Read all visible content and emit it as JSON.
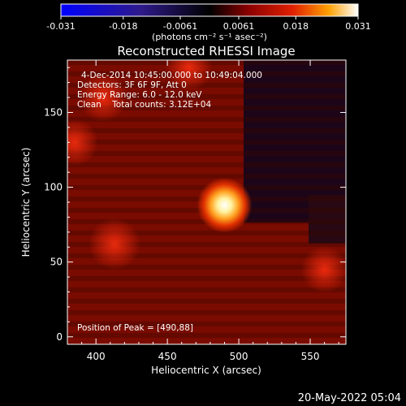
{
  "chart_data": {
    "type": "heatmap",
    "title": "Reconstructed RHESSI Image",
    "xlabel": "Heliocentric X (arcsec)",
    "ylabel": "Heliocentric Y (arcsec)",
    "xlim": [
      380,
      575
    ],
    "ylim": [
      -5,
      185
    ],
    "x_ticks": [
      "400",
      "450",
      "500",
      "550"
    ],
    "y_ticks": [
      "0",
      "50",
      "100",
      "150"
    ],
    "colorbar": {
      "ticks": [
        "-0.031",
        "-0.018",
        "-0.0061",
        "0.0061",
        "0.018",
        "0.031"
      ],
      "range": [
        -0.031,
        0.031
      ],
      "unit_label": "(photons cm⁻² s⁻¹ asec⁻²)"
    },
    "annotations": {
      "time_range": "4-Dec-2014 10:45:00.000 to 10:49:04.000",
      "detectors": "Detectors: 3F 6F 9F, Att 0",
      "energy": "Energy Range: 6.0 - 12.0 keV",
      "clean": "Clean    Total counts: 3.12E+04",
      "peak": "Position of Peak = [490,88]"
    },
    "peak": {
      "x": 490,
      "y": 88,
      "value": 0.031
    },
    "sources": [
      {
        "x": 490,
        "y": 88,
        "value": 0.031
      },
      {
        "x": 413,
        "y": 62,
        "value": 0.008
      },
      {
        "x": 405,
        "y": 160,
        "value": 0.006
      },
      {
        "x": 465,
        "y": 180,
        "value": 0.005
      },
      {
        "x": 385,
        "y": 130,
        "value": 0.005
      },
      {
        "x": 560,
        "y": 45,
        "value": 0.005
      }
    ]
  },
  "footer": {
    "timestamp": "20-May-2022 05:04"
  }
}
